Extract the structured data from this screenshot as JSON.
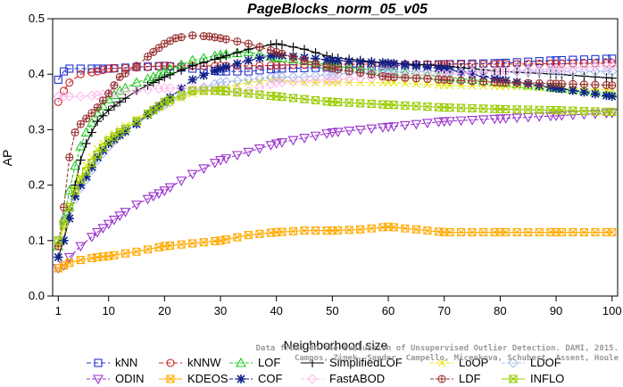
{
  "chart_data": {
    "type": "line",
    "title": "PageBlocks_norm_05_v05",
    "xlabel": "Neighborhood size",
    "ylabel": "AP",
    "xlim": [
      0,
      101
    ],
    "ylim": [
      0,
      0.5
    ],
    "xticks": [
      1,
      10,
      20,
      30,
      40,
      50,
      60,
      70,
      80,
      90,
      100
    ],
    "yticks": [
      0.0,
      0.1,
      0.2,
      0.3,
      0.4,
      0.5
    ],
    "grid": false,
    "legend_position": "bottom",
    "watermark": [
      "Data from: On the Evaluation of Unsupervised Outlier Detection. DAMI, 2015.",
      "Campos, Zimek, Sander, Campello, Micenkova, Schubert, Assent, Houle"
    ],
    "series": [
      {
        "name": "kNN",
        "color": "#2233cc",
        "marker": "square",
        "dash": "5,3",
        "x": [
          1,
          2,
          3,
          5,
          8,
          10,
          15,
          20,
          25,
          30,
          35,
          40,
          50,
          60,
          70,
          80,
          90,
          100
        ],
        "y": [
          0.39,
          0.405,
          0.41,
          0.41,
          0.41,
          0.41,
          0.413,
          0.415,
          0.41,
          0.405,
          0.405,
          0.41,
          0.412,
          0.415,
          0.418,
          0.42,
          0.425,
          0.428
        ]
      },
      {
        "name": "kNNW",
        "color": "#cc2222",
        "marker": "circle",
        "dash": "5,3",
        "x": [
          1,
          2,
          3,
          5,
          8,
          10,
          15,
          20,
          25,
          30,
          35,
          40,
          50,
          60,
          70,
          80,
          90,
          100
        ],
        "y": [
          0.35,
          0.37,
          0.385,
          0.4,
          0.405,
          0.41,
          0.412,
          0.415,
          0.415,
          0.415,
          0.415,
          0.416,
          0.418,
          0.418,
          0.418,
          0.418,
          0.419,
          0.42
        ]
      },
      {
        "name": "LOF",
        "color": "#22cc22",
        "marker": "triangle",
        "dash": "4,2",
        "x": [
          1,
          2,
          3,
          4,
          5,
          6,
          8,
          10,
          12,
          15,
          18,
          20,
          25,
          30,
          35,
          40,
          45,
          50,
          60,
          70,
          80,
          90,
          100
        ],
        "y": [
          0.09,
          0.14,
          0.19,
          0.235,
          0.27,
          0.295,
          0.33,
          0.355,
          0.37,
          0.385,
          0.395,
          0.405,
          0.425,
          0.435,
          0.44,
          0.43,
          0.425,
          0.415,
          0.405,
          0.395,
          0.385,
          0.375,
          0.365
        ]
      },
      {
        "name": "SimplifiedLOF",
        "color": "#000000",
        "marker": "plus",
        "dash": "",
        "x": [
          1,
          2,
          3,
          4,
          5,
          6,
          8,
          10,
          12,
          15,
          18,
          20,
          25,
          30,
          35,
          40,
          45,
          50,
          60,
          70,
          80,
          90,
          100
        ],
        "y": [
          0.07,
          0.1,
          0.155,
          0.2,
          0.245,
          0.275,
          0.315,
          0.335,
          0.35,
          0.37,
          0.385,
          0.395,
          0.415,
          0.43,
          0.445,
          0.455,
          0.445,
          0.43,
          0.42,
          0.415,
          0.405,
          0.4,
          0.393
        ]
      },
      {
        "name": "LoOP",
        "color": "#e6e600",
        "marker": "x",
        "dash": "4,2",
        "x": [
          1,
          2,
          3,
          4,
          5,
          6,
          8,
          10,
          12,
          15,
          18,
          20,
          25,
          30,
          35,
          40,
          45,
          50,
          60,
          70,
          80,
          90,
          100
        ],
        "y": [
          0.09,
          0.12,
          0.16,
          0.19,
          0.215,
          0.235,
          0.265,
          0.285,
          0.3,
          0.32,
          0.335,
          0.345,
          0.365,
          0.375,
          0.385,
          0.39,
          0.385,
          0.385,
          0.385,
          0.38,
          0.378,
          0.375,
          0.372
        ]
      },
      {
        "name": "LDOF",
        "color": "#aabbee",
        "marker": "diamond",
        "dash": "4,2",
        "x": [
          1,
          2,
          3,
          4,
          5,
          6,
          8,
          10,
          12,
          15,
          18,
          20,
          25,
          30,
          35,
          40,
          45,
          50,
          60,
          70,
          80,
          90,
          100
        ],
        "y": [
          0.1,
          0.13,
          0.155,
          0.175,
          0.195,
          0.21,
          0.245,
          0.27,
          0.29,
          0.315,
          0.335,
          0.345,
          0.37,
          0.385,
          0.39,
          0.395,
          0.395,
          0.4,
          0.405,
          0.405,
          0.405,
          0.405,
          0.405
        ]
      },
      {
        "name": "ODIN",
        "color": "#9933cc",
        "marker": "triangle-down",
        "dash": "4,2",
        "x": [
          1,
          2,
          3,
          5,
          8,
          10,
          12,
          15,
          18,
          20,
          25,
          30,
          35,
          40,
          45,
          50,
          55,
          60,
          65,
          70,
          80,
          90,
          100
        ],
        "y": [
          0.05,
          0.055,
          0.07,
          0.09,
          0.115,
          0.13,
          0.145,
          0.165,
          0.18,
          0.19,
          0.22,
          0.245,
          0.26,
          0.275,
          0.285,
          0.295,
          0.3,
          0.305,
          0.31,
          0.315,
          0.32,
          0.325,
          0.33
        ]
      },
      {
        "name": "KDEOS",
        "color": "#ffaa00",
        "marker": "square-x",
        "dash": "",
        "x": [
          1,
          2,
          3,
          5,
          8,
          10,
          15,
          20,
          25,
          30,
          35,
          40,
          45,
          50,
          55,
          60,
          65,
          70,
          75,
          80,
          90,
          100
        ],
        "y": [
          0.05,
          0.055,
          0.06,
          0.065,
          0.07,
          0.072,
          0.08,
          0.09,
          0.095,
          0.1,
          0.11,
          0.115,
          0.118,
          0.118,
          0.12,
          0.125,
          0.12,
          0.115,
          0.115,
          0.115,
          0.115,
          0.115
        ]
      },
      {
        "name": "COF",
        "color": "#112288",
        "marker": "asterisk",
        "dash": "4,2",
        "x": [
          1,
          2,
          3,
          4,
          5,
          6,
          8,
          10,
          12,
          15,
          18,
          20,
          25,
          30,
          35,
          40,
          45,
          50,
          60,
          70,
          80,
          90,
          100
        ],
        "y": [
          0.07,
          0.1,
          0.14,
          0.18,
          0.2,
          0.215,
          0.25,
          0.275,
          0.29,
          0.31,
          0.335,
          0.35,
          0.39,
          0.41,
          0.425,
          0.435,
          0.43,
          0.425,
          0.42,
          0.41,
          0.39,
          0.375,
          0.36
        ]
      },
      {
        "name": "FastABOD",
        "color": "#ffbbee",
        "marker": "diamond",
        "dash": "4,2",
        "x": [
          1,
          2,
          3,
          5,
          8,
          10,
          15,
          20,
          25,
          30,
          35,
          40,
          50,
          60,
          70,
          80,
          90,
          100
        ],
        "y": [
          0.36,
          0.36,
          0.36,
          0.36,
          0.362,
          0.365,
          0.37,
          0.375,
          0.375,
          0.37,
          0.37,
          0.385,
          0.39,
          0.395,
          0.4,
          0.405,
          0.41,
          0.415
        ]
      },
      {
        "name": "LDF",
        "color": "#993333",
        "marker": "circle-plus",
        "dash": "4,2",
        "x": [
          1,
          2,
          3,
          4,
          5,
          6,
          8,
          10,
          12,
          15,
          18,
          20,
          22,
          25,
          28,
          30,
          35,
          40,
          45,
          50,
          60,
          70,
          80,
          90,
          100
        ],
        "y": [
          0.09,
          0.16,
          0.25,
          0.295,
          0.31,
          0.32,
          0.34,
          0.365,
          0.395,
          0.415,
          0.44,
          0.455,
          0.465,
          0.47,
          0.468,
          0.465,
          0.455,
          0.44,
          0.425,
          0.41,
          0.395,
          0.39,
          0.385,
          0.383,
          0.38
        ]
      },
      {
        "name": "INFLO",
        "color": "#99cc00",
        "marker": "hourglass",
        "dash": "",
        "x": [
          1,
          2,
          3,
          4,
          5,
          6,
          8,
          10,
          12,
          15,
          18,
          20,
          25,
          30,
          35,
          40,
          45,
          50,
          60,
          70,
          80,
          90,
          100
        ],
        "y": [
          0.1,
          0.13,
          0.16,
          0.19,
          0.21,
          0.225,
          0.255,
          0.28,
          0.295,
          0.315,
          0.335,
          0.35,
          0.37,
          0.37,
          0.365,
          0.36,
          0.355,
          0.35,
          0.345,
          0.34,
          0.337,
          0.335,
          0.332
        ]
      }
    ]
  }
}
